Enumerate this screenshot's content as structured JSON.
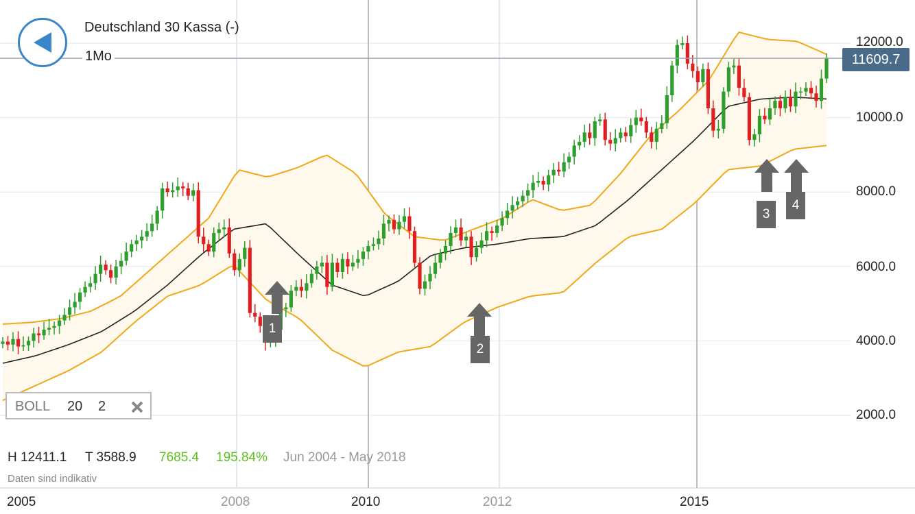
{
  "header": {
    "title": "Deutschland 30 Kassa (-)",
    "interval": "1Mo",
    "current_price": "11609.7"
  },
  "indicator": {
    "name": "BOLL",
    "period": "20",
    "stddev": "2"
  },
  "stats": {
    "high": "H 12411.1",
    "low": "T 3588.9",
    "change": "7685.4",
    "change_pct": "195.84%",
    "range": "Jun 2004 - May 2018"
  },
  "disclaimer": "Daten sind indikativ",
  "annotations": [
    "1",
    "2",
    "3",
    "4"
  ],
  "colors": {
    "up": "#2e9e2e",
    "down": "#e02020",
    "band": "#f0a818",
    "band_fill": "#fff8ec",
    "mid": "#222222",
    "accent": "#3a86c8",
    "price_tag": "#4a6a8a",
    "positive": "#5cbf1c"
  },
  "chart_data": {
    "type": "candlestick",
    "ylim": [
      1000,
      13300
    ],
    "y_ticks": [
      "12000.0",
      "10000.0",
      "8000.0",
      "6000.0",
      "4000.0",
      "2000.0"
    ],
    "x_ticks": [
      "2005",
      "2008",
      "2010",
      "2012",
      "2015"
    ],
    "x_range": [
      "Jun 2004",
      "May 2018"
    ],
    "candles_close": [
      3980,
      3900,
      4050,
      3850,
      3880,
      4000,
      4200,
      4150,
      4300,
      4350,
      4400,
      4550,
      4700,
      4900,
      5050,
      5300,
      5450,
      5550,
      5800,
      6050,
      5900,
      5700,
      6000,
      6150,
      6400,
      6600,
      6700,
      6800,
      6950,
      7150,
      7500,
      8100,
      8000,
      8050,
      8150,
      8100,
      7900,
      8050,
      6800,
      6600,
      6400,
      6900,
      7000,
      7050,
      6350,
      5900,
      6200,
      6500,
      4750,
      4650,
      4400,
      3950,
      3990,
      4300,
      4850,
      4900,
      5350,
      5450,
      5350,
      5550,
      5800,
      6000,
      6100,
      5450,
      6100,
      5850,
      6200,
      6000,
      6100,
      6200,
      6400,
      6550,
      6600,
      6750,
      7150,
      7250,
      7000,
      7200,
      7350,
      6950,
      6100,
      5400,
      5600,
      5800,
      6100,
      6350,
      6550,
      6900,
      7050,
      6700,
      6800,
      6250,
      6500,
      6700,
      6950,
      6900,
      7100,
      7300,
      7500,
      7650,
      7750,
      7900,
      8050,
      8250,
      8300,
      8200,
      8450,
      8600,
      8550,
      8800,
      8950,
      9250,
      9350,
      9600,
      9450,
      9900,
      9950,
      9400,
      9300,
      9450,
      9600,
      9500,
      9800,
      10000,
      9900,
      9600,
      9350,
      9700,
      9850,
      10600,
      11400,
      11950,
      12000,
      11450,
      11250,
      10950,
      11300,
      10250,
      9650,
      9700,
      10700,
      11350,
      11400,
      10800,
      10550,
      9400,
      9550,
      10050,
      9950,
      10250,
      10450,
      10250,
      10550,
      10300,
      10700,
      10700,
      10800,
      10650,
      10450,
      11050,
      11609
    ],
    "bollinger": {
      "upper_approx": [
        4450,
        4500,
        4600,
        4800,
        5200,
        5900,
        6600,
        7300,
        8600,
        8400,
        8650,
        9000,
        8500,
        7400,
        6800,
        6700,
        7000,
        7300,
        7800,
        7500,
        7650,
        8500,
        9500,
        10200,
        11000,
        12300,
        12100,
        12050,
        11700
      ],
      "middle_approx": [
        3400,
        3600,
        3900,
        4250,
        4800,
        5500,
        6300,
        7000,
        7150,
        6300,
        5500,
        5200,
        5600,
        6300,
        6500,
        6600,
        6750,
        6800,
        7100,
        7800,
        8600,
        9400,
        10300,
        10500,
        10550,
        10500
      ],
      "lower_approx": [
        2400,
        2800,
        3200,
        3700,
        4500,
        5200,
        5500,
        6050,
        5100,
        4600,
        3750,
        3300,
        3700,
        3850,
        4500,
        4900,
        5200,
        5300,
        6100,
        6800,
        7000,
        7700,
        8600,
        8700,
        9150,
        9250
      ]
    },
    "markers": [
      {
        "label": "1",
        "date": "2008"
      },
      {
        "label": "2",
        "date": "2011"
      },
      {
        "label": "3",
        "date": "2016"
      },
      {
        "label": "4",
        "date": "2016"
      }
    ]
  }
}
